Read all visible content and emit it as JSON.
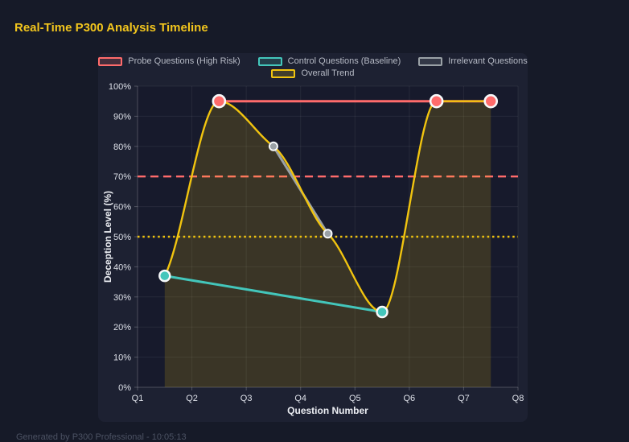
{
  "header": {
    "title": "Real-Time P300 Analysis Timeline"
  },
  "footer": {
    "text": "Generated by P300 Professional - 10:05:13"
  },
  "colors": {
    "page_background": "#161a28",
    "panel_background": "#1d2132",
    "plot_background": "#171a2c",
    "title": "#f2c51d",
    "probe": "#ff6b6b",
    "control": "#43c6bb",
    "irrelevant": "#9aa1a6",
    "trend": "#f1c40f",
    "tick_text": "#dde0e8",
    "axis_title_text": "#eceef3"
  },
  "chart_data": {
    "type": "line",
    "xlabel": "Question Number",
    "ylabel": "Deception Level (%)",
    "x_tick_labels": [
      "Q1",
      "Q2",
      "Q3",
      "Q4",
      "Q5",
      "Q6",
      "Q7",
      "Q8"
    ],
    "y_tick_labels": [
      "0%",
      "10%",
      "20%",
      "30%",
      "40%",
      "50%",
      "60%",
      "70%",
      "80%",
      "90%",
      "100%"
    ],
    "xlim": [
      1,
      8
    ],
    "ylim": [
      0,
      100
    ],
    "grid": true,
    "legend_position": "top",
    "legend": [
      "Probe Questions (High Risk)",
      "Control Questions (Baseline)",
      "Irrelevant Questions",
      "Overall Trend"
    ],
    "series": [
      {
        "name": "Probe Questions (High Risk)",
        "color": "#ff6b6b",
        "x": [
          2.5,
          6.5,
          7.5
        ],
        "y": [
          95,
          95,
          95
        ]
      },
      {
        "name": "Control Questions (Baseline)",
        "color": "#43c6bb",
        "x": [
          1.5,
          5.5
        ],
        "y": [
          37,
          25
        ]
      },
      {
        "name": "Irrelevant Questions",
        "color": "#9aa1a6",
        "x": [
          3.5,
          4.5
        ],
        "y": [
          80,
          51
        ]
      },
      {
        "name": "Overall Trend",
        "color": "#f1c40f",
        "x": [
          1.5,
          2.5,
          3.5,
          4.5,
          5.5,
          6.5,
          7.5
        ],
        "y": [
          37,
          95,
          80,
          51,
          25,
          95,
          95
        ],
        "smooth": true,
        "area_fill": true
      }
    ],
    "thresholds": [
      {
        "value": 70,
        "color": "#ff6b6b",
        "style": "dashed"
      },
      {
        "value": 50,
        "color": "#f1c40f",
        "style": "dotted"
      }
    ]
  }
}
